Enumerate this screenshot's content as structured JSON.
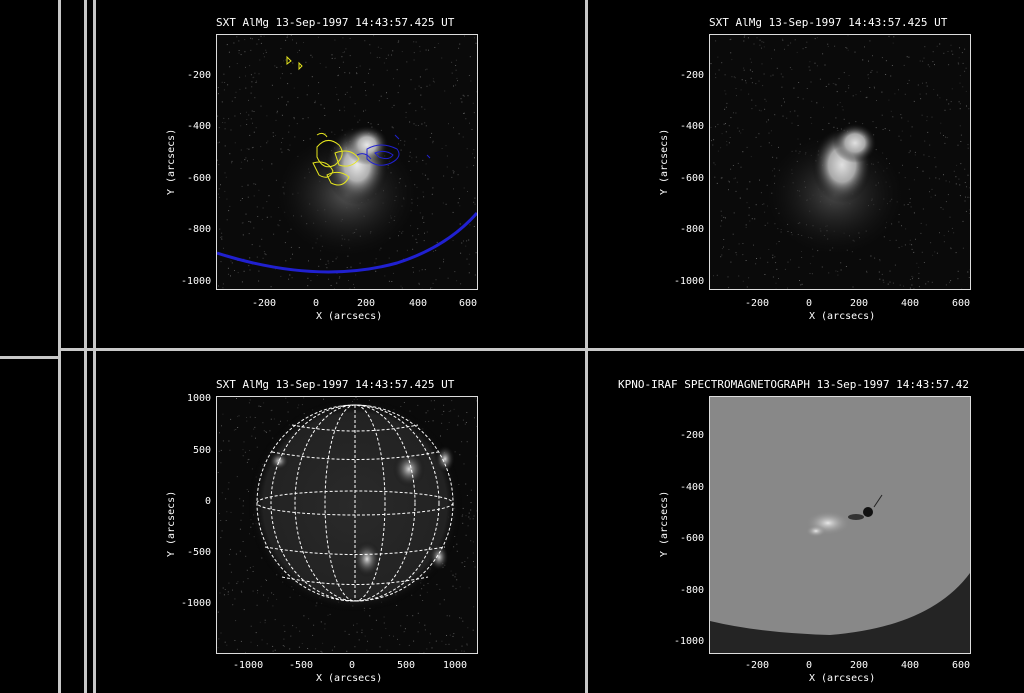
{
  "panels": [
    {
      "id": "p1",
      "title": "SXT AlMg 13-Sep-1997 14:43:57.425 UT",
      "xlabel": "X (arcsecs)",
      "ylabel": "Y (arcsecs)",
      "xticks": [
        "-200",
        "0",
        "200",
        "400",
        "600"
      ],
      "yticks": [
        "-200",
        "-400",
        "-600",
        "-800",
        "-1000"
      ],
      "overlay": "contours"
    },
    {
      "id": "p2",
      "title": "SXT AlMg 13-Sep-1997 14:43:57.425 UT",
      "xlabel": "X (arcsecs)",
      "ylabel": "Y (arcsecs)",
      "xticks": [
        "-200",
        "0",
        "200",
        "400",
        "600"
      ],
      "yticks": [
        "-200",
        "-400",
        "-600",
        "-800",
        "-1000"
      ],
      "overlay": "none"
    },
    {
      "id": "p3",
      "title": "SXT AlMg 13-Sep-1997 14:43:57.425 UT",
      "xlabel": "X (arcsecs)",
      "ylabel": "Y (arcsecs)",
      "xticks": [
        "-1000",
        "-500",
        "0",
        "500",
        "1000"
      ],
      "yticks": [
        "1000",
        "500",
        "0",
        "-500",
        "-1000"
      ],
      "overlay": "grid"
    },
    {
      "id": "p4",
      "title": "KPNO-IRAF SPECTROMAGNETOGRAPH 13-Sep-1997 14:43:57.42",
      "xlabel": "X (arcsecs)",
      "ylabel": "Y (arcsecs)",
      "xticks": [
        "-200",
        "0",
        "200",
        "400",
        "600"
      ],
      "yticks": [
        "-200",
        "-400",
        "-600",
        "-800",
        "-1000"
      ],
      "overlay": "magnetogram"
    }
  ],
  "colors": {
    "background": "#000000",
    "divider": "#c8c8c8",
    "contour_positive": "#e6e61e",
    "contour_negative": "#2020d0",
    "limb": "#2020d0",
    "grid": "#ffffff"
  }
}
